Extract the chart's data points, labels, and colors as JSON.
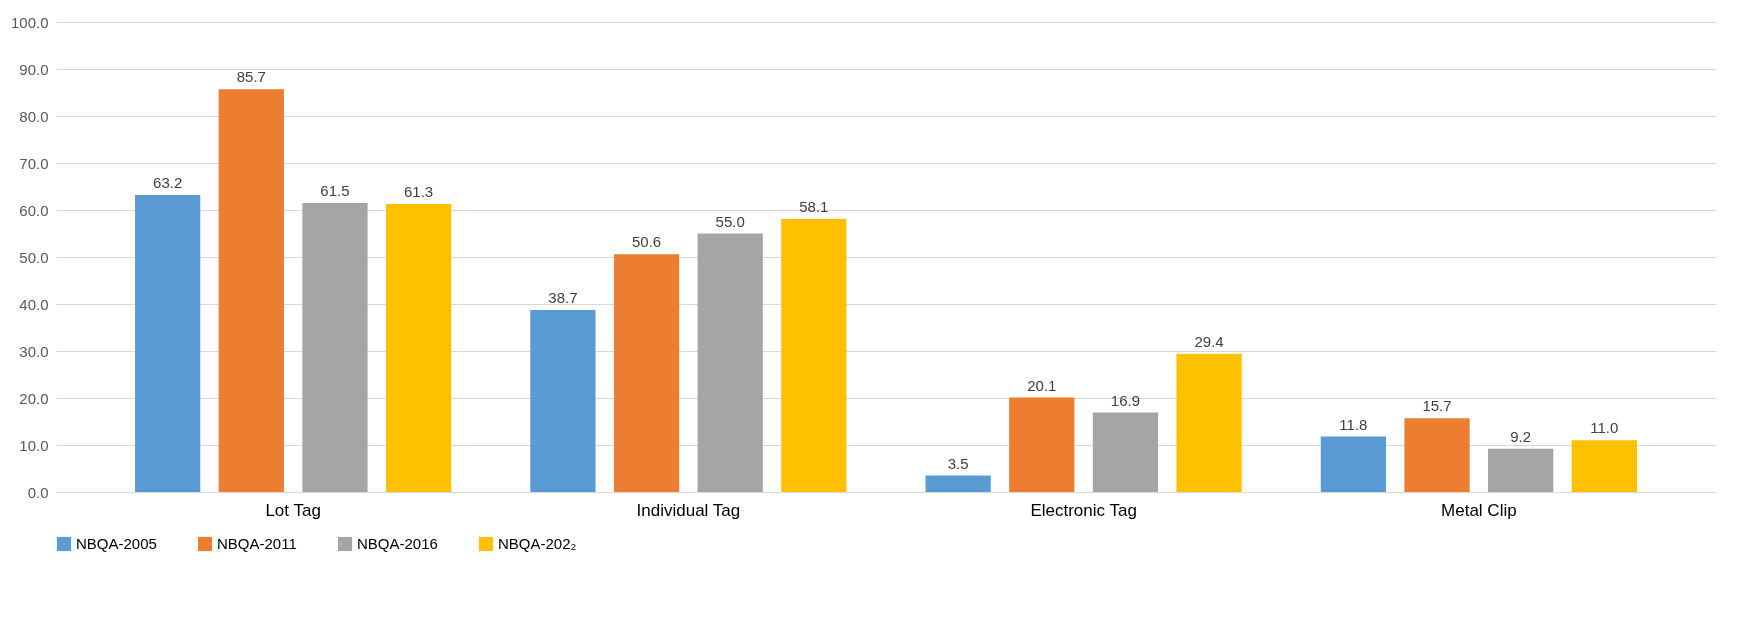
{
  "chart_data": {
    "type": "bar",
    "categories": [
      "Lot Tag",
      "Individual Tag",
      "Electronic Tag",
      "Metal Clip"
    ],
    "series": [
      {
        "name": "NBQA-2005",
        "color": "#5b9bd5",
        "values": [
          63.2,
          38.7,
          3.5,
          11.8
        ],
        "value_labels": [
          "63.2",
          "38.7",
          "3.5",
          "11.8"
        ]
      },
      {
        "name": "NBQA-2011",
        "color": "#ed7d31",
        "values": [
          85.7,
          50.6,
          20.1,
          15.7
        ],
        "value_labels": [
          "85.7",
          "50.6",
          "20.1",
          "15.7"
        ]
      },
      {
        "name": "NBQA-2016",
        "color": "#a5a5a5",
        "values": [
          61.5,
          55.0,
          16.9,
          9.2
        ],
        "value_labels": [
          "61.5",
          "55.0",
          "16.9",
          "9.2"
        ]
      },
      {
        "name": "NBQA-202₂",
        "color": "#ffc000",
        "values": [
          61.3,
          58.1,
          29.4,
          11.0
        ],
        "value_labels": [
          "61.3",
          "58.1",
          "29.4",
          "11.0"
        ]
      }
    ],
    "ylim": [
      0,
      100
    ],
    "yticks": [
      {
        "value": 0,
        "label": "0.0"
      },
      {
        "value": 10,
        "label": "10.0"
      },
      {
        "value": 20,
        "label": "20.0"
      },
      {
        "value": 30,
        "label": "30.0"
      },
      {
        "value": 40,
        "label": "40.0"
      },
      {
        "value": 50,
        "label": "50.0"
      },
      {
        "value": 60,
        "label": "60.0"
      },
      {
        "value": 70,
        "label": "70.0"
      },
      {
        "value": 80,
        "label": "80.0"
      },
      {
        "value": 90,
        "label": "90.0"
      },
      {
        "value": 100,
        "label": "100.0"
      }
    ],
    "grid": "y",
    "legend": "bottom"
  }
}
